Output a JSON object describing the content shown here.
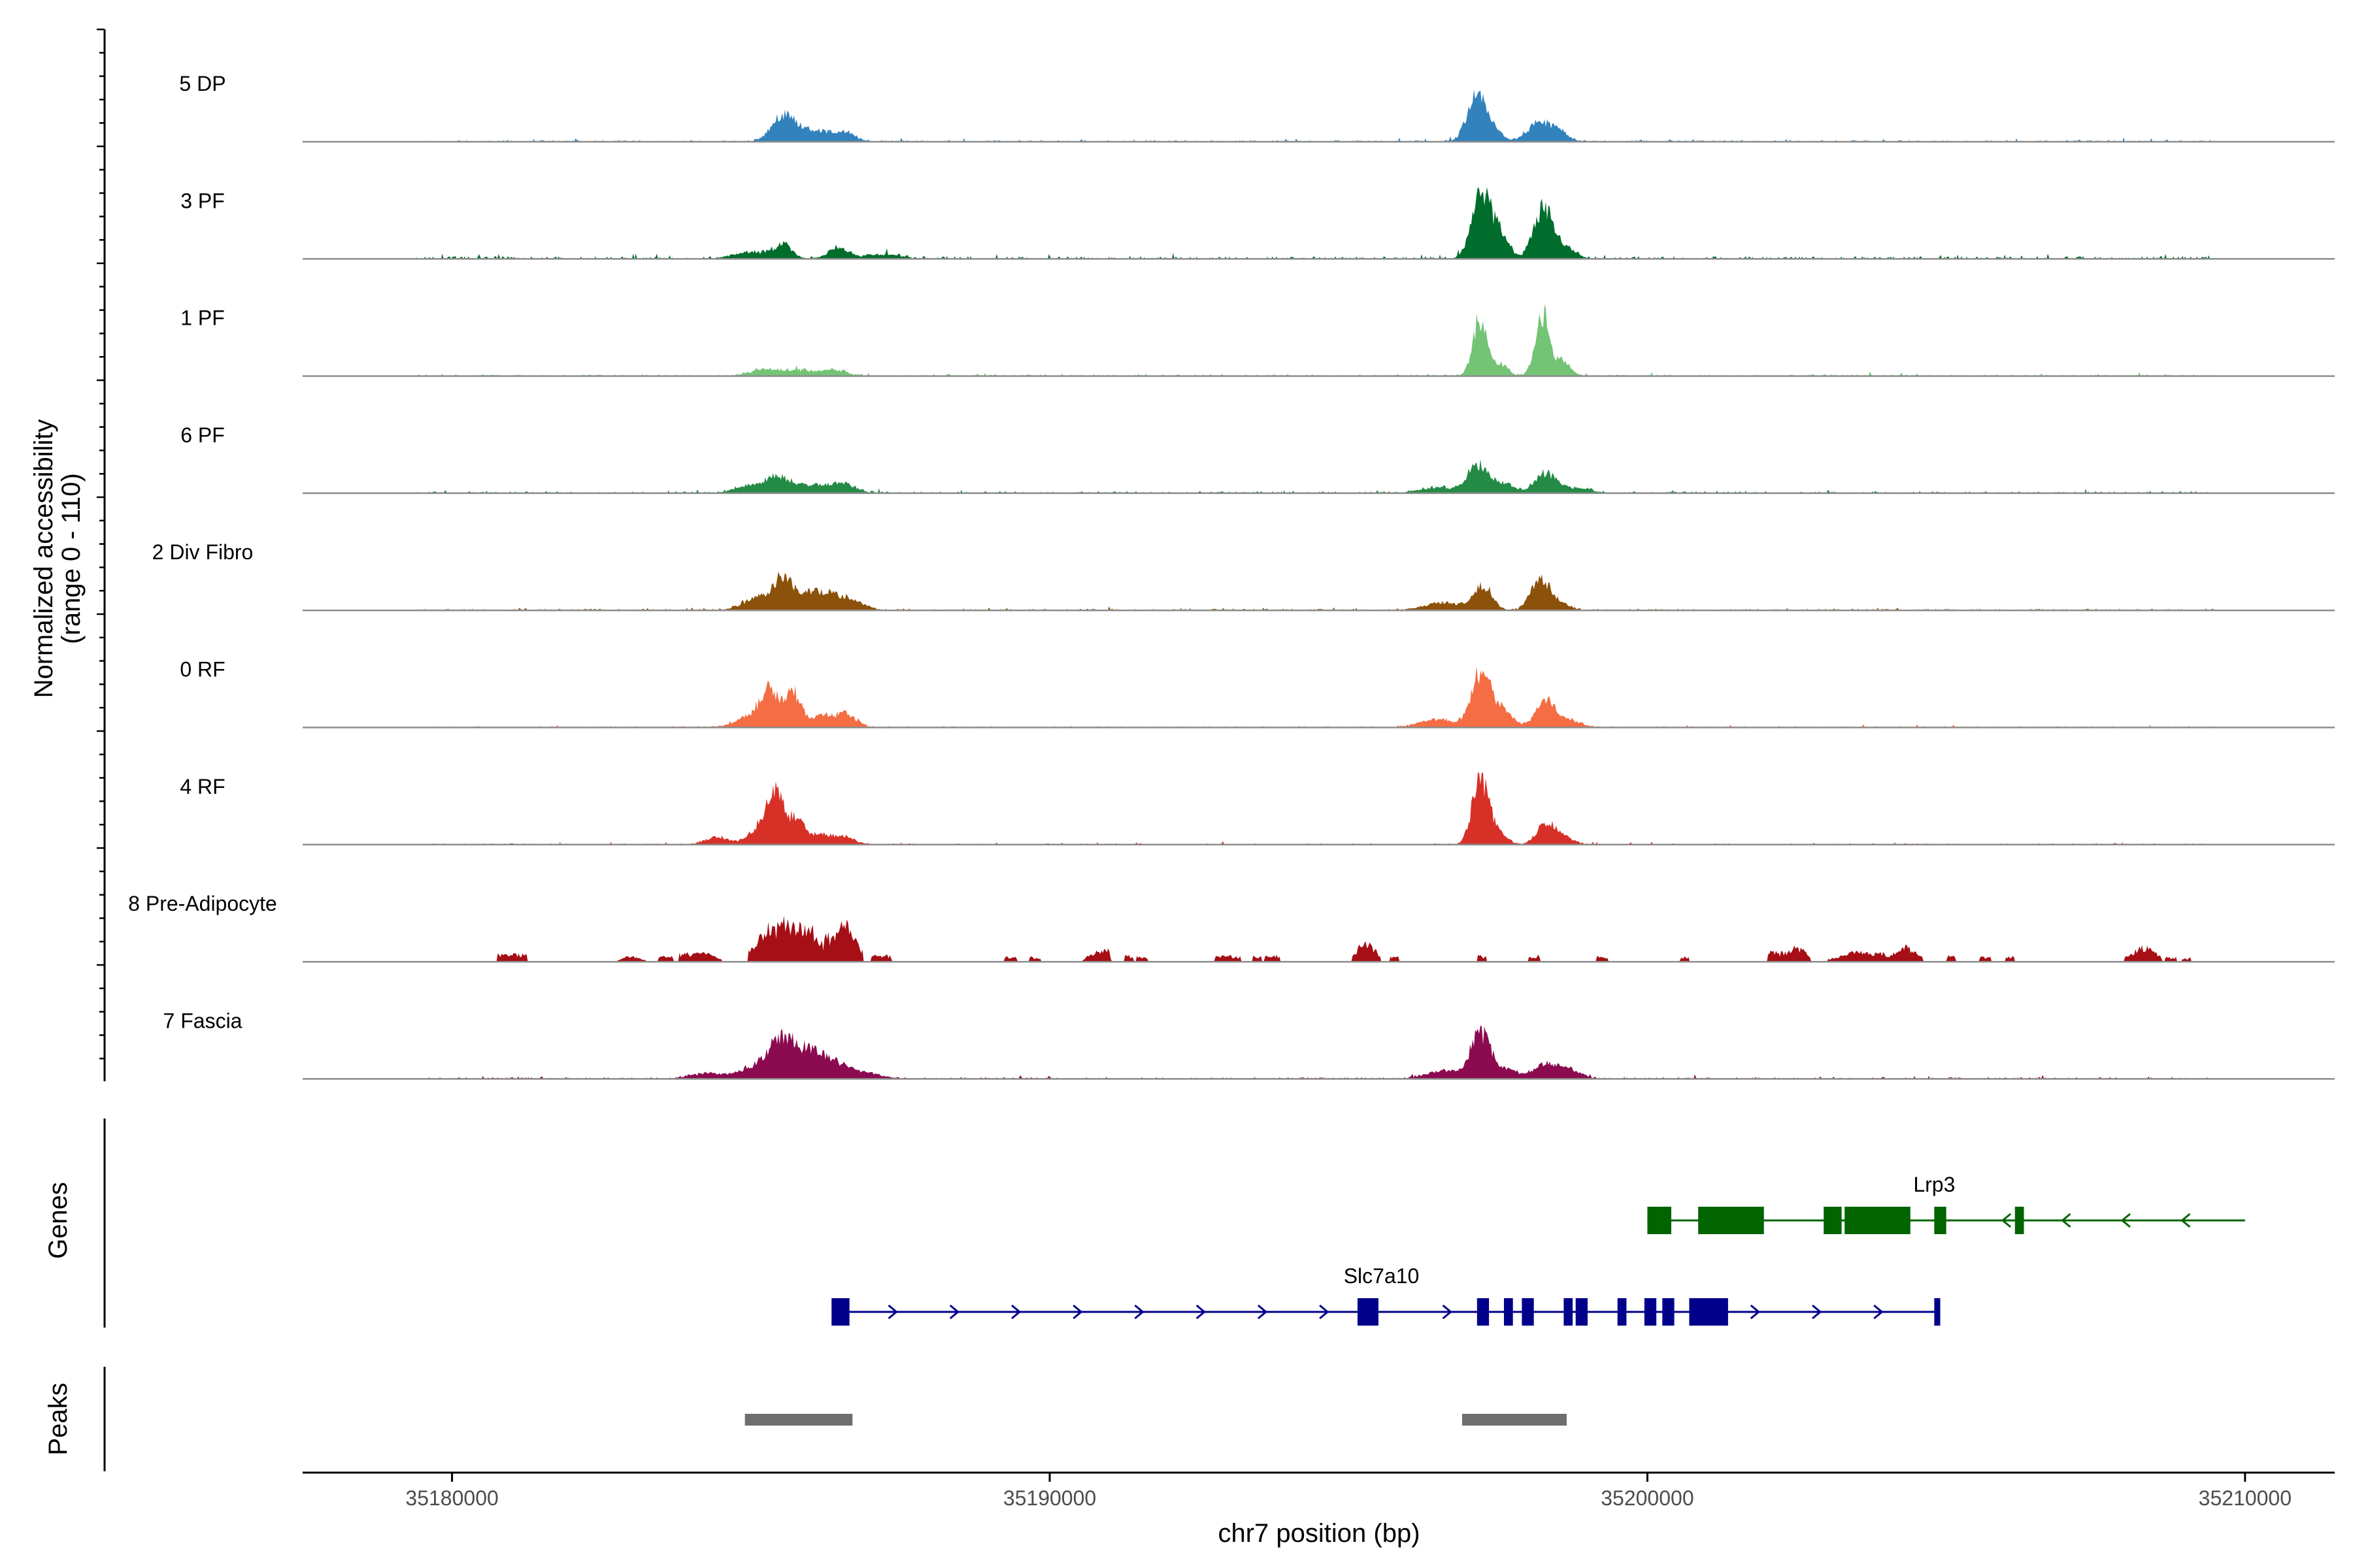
{
  "chart_data": {
    "type": "area",
    "title": "",
    "xlabel": "chr7 position (bp)",
    "ylabel_line1": "Normalized accessibility",
    "ylabel_line2": "(range 0 - 110)",
    "yrange": [
      0,
      110
    ],
    "xlim": [
      35177500,
      35211500
    ],
    "x_ticks": [
      35180000,
      35190000,
      35200000,
      35210000
    ],
    "x_tick_labels": [
      "35180000",
      "35190000",
      "35200000",
      "35210000"
    ],
    "section_labels": {
      "genes": "Genes",
      "peaks": "Peaks"
    },
    "tracks": [
      {
        "name": "5 DP",
        "color": "#3182bd",
        "range": [
          35179400,
          35209500
        ],
        "noise": 2.5,
        "noise_reach": 1.0,
        "sparse": false,
        "peaks": [
          [
            35185550,
            200,
            38
          ],
          [
            35186050,
            280,
            16
          ],
          [
            35186550,
            200,
            12
          ],
          [
            35197150,
            160,
            72
          ],
          [
            35197450,
            120,
            14
          ],
          [
            35198200,
            200,
            30
          ],
          [
            35198550,
            140,
            12
          ]
        ]
      },
      {
        "name": "3 PF",
        "color": "#006d2c",
        "range": [
          35179400,
          35209500
        ],
        "noise": 4,
        "noise_reach": 0.8,
        "sparse": false,
        "peaks": [
          [
            35185000,
            300,
            10
          ],
          [
            35185550,
            150,
            20
          ],
          [
            35186450,
            170,
            16
          ],
          [
            35187200,
            300,
            7
          ],
          [
            35197200,
            150,
            100
          ],
          [
            35197500,
            160,
            40
          ],
          [
            35198250,
            150,
            80
          ],
          [
            35198600,
            180,
            20
          ]
        ]
      },
      {
        "name": "1 PF",
        "color": "#74c476",
        "range": [
          35179400,
          35209500
        ],
        "noise": 2.5,
        "noise_reach": 1.0,
        "sparse": false,
        "peaks": [
          [
            35185200,
            250,
            9
          ],
          [
            35185800,
            300,
            8
          ],
          [
            35186400,
            200,
            8
          ],
          [
            35197200,
            120,
            88
          ],
          [
            35197550,
            120,
            18
          ],
          [
            35198250,
            120,
            98
          ],
          [
            35198600,
            120,
            22
          ]
        ]
      },
      {
        "name": "6 PF",
        "color": "#238b45",
        "range": [
          35179400,
          35209500
        ],
        "noise": 3,
        "noise_reach": 0.9,
        "sparse": false,
        "peaks": [
          [
            35185000,
            250,
            12
          ],
          [
            35185450,
            200,
            22
          ],
          [
            35186000,
            300,
            12
          ],
          [
            35186550,
            200,
            14
          ],
          [
            35196500,
            300,
            9
          ],
          [
            35197150,
            160,
            42
          ],
          [
            35197550,
            200,
            16
          ],
          [
            35198300,
            170,
            30
          ],
          [
            35198800,
            250,
            8
          ]
        ]
      },
      {
        "name": "2 Div Fibro",
        "color": "#8c510a",
        "range": [
          35179400,
          35209500
        ],
        "noise": 2.5,
        "noise_reach": 1.0,
        "sparse": false,
        "peaks": [
          [
            35185150,
            250,
            22
          ],
          [
            35185550,
            140,
            50
          ],
          [
            35185950,
            180,
            24
          ],
          [
            35186300,
            200,
            22
          ],
          [
            35186700,
            200,
            14
          ],
          [
            35196600,
            300,
            12
          ],
          [
            35197250,
            150,
            38
          ],
          [
            35198200,
            150,
            48
          ],
          [
            35198500,
            180,
            12
          ]
        ]
      },
      {
        "name": "0 RF",
        "color": "#f46d43",
        "range": [
          35179400,
          35209500
        ],
        "noise": 2,
        "noise_reach": 1.0,
        "sparse": false,
        "peaks": [
          [
            35184900,
            200,
            14
          ],
          [
            35185300,
            150,
            60
          ],
          [
            35185700,
            140,
            55
          ],
          [
            35186200,
            170,
            18
          ],
          [
            35186600,
            170,
            20
          ],
          [
            35196500,
            300,
            12
          ],
          [
            35197200,
            150,
            78
          ],
          [
            35197500,
            200,
            30
          ],
          [
            35198300,
            160,
            42
          ],
          [
            35198700,
            200,
            10
          ]
        ]
      },
      {
        "name": "4 RF",
        "color": "#d73027",
        "range": [
          35179400,
          35209500
        ],
        "noise": 2,
        "noise_reach": 1.0,
        "sparse": false,
        "peaks": [
          [
            35184450,
            200,
            12
          ],
          [
            35185100,
            150,
            22
          ],
          [
            35185400,
            140,
            78
          ],
          [
            35185750,
            140,
            38
          ],
          [
            35186150,
            170,
            16
          ],
          [
            35186550,
            170,
            12
          ],
          [
            35197200,
            130,
            100
          ],
          [
            35197450,
            160,
            20
          ],
          [
            35198300,
            150,
            32
          ],
          [
            35198600,
            160,
            12
          ]
        ]
      },
      {
        "name": "8 Pre-Adipocyte",
        "color": "#a50f15",
        "range": [
          35180700,
          35209500
        ],
        "noise": 0,
        "noise_reach": 1.0,
        "sparse": true,
        "peaks": [
          [
            35185350,
            250,
            60
          ],
          [
            35185900,
            250,
            60
          ],
          [
            35186550,
            200,
            62
          ],
          [
            35184200,
            200,
            14
          ],
          [
            35181000,
            150,
            10
          ],
          [
            35183000,
            150,
            8
          ],
          [
            35195300,
            150,
            32
          ],
          [
            35204300,
            200,
            24
          ],
          [
            35203500,
            300,
            16
          ],
          [
            35208300,
            200,
            24
          ],
          [
            35190800,
            150,
            18
          ],
          [
            35202500,
            150,
            24
          ]
        ],
        "blocks": [
          [
            35180750,
            35181250,
            12
          ],
          [
            35182850,
            35183050,
            8
          ],
          [
            35183450,
            35183700,
            10
          ],
          [
            35183800,
            35184300,
            14
          ],
          [
            35187000,
            35187350,
            10
          ],
          [
            35189250,
            35189450,
            8
          ],
          [
            35189650,
            35189850,
            8
          ],
          [
            35190750,
            35191000,
            20
          ],
          [
            35191250,
            35191400,
            10
          ],
          [
            35191450,
            35191650,
            8
          ],
          [
            35192750,
            35193200,
            10
          ],
          [
            35193400,
            35193550,
            10
          ],
          [
            35193600,
            35193850,
            10
          ],
          [
            35195150,
            35195400,
            30
          ],
          [
            35195700,
            35195850,
            8
          ],
          [
            35197150,
            35197300,
            10
          ],
          [
            35198000,
            35198200,
            10
          ],
          [
            35199150,
            35199350,
            8
          ],
          [
            35200550,
            35200700,
            8
          ],
          [
            35202000,
            35202500,
            16
          ],
          [
            35203400,
            35204000,
            14
          ],
          [
            35204400,
            35204600,
            10
          ],
          [
            35205000,
            35205150,
            10
          ],
          [
            35205550,
            35205750,
            8
          ],
          [
            35206000,
            35206150,
            8
          ],
          [
            35208200,
            35208450,
            16
          ],
          [
            35208650,
            35208850,
            8
          ],
          [
            35208950,
            35209100,
            6
          ]
        ]
      },
      {
        "name": "7 Fascia",
        "color": "#8b0a50",
        "range": [
          35179400,
          35209500
        ],
        "noise": 2.5,
        "noise_reach": 1.0,
        "sparse": false,
        "peaks": [
          [
            35185100,
            250,
            20
          ],
          [
            35185500,
            180,
            58
          ],
          [
            35185900,
            200,
            42
          ],
          [
            35186300,
            200,
            26
          ],
          [
            35186800,
            300,
            12
          ],
          [
            35184300,
            300,
            8
          ],
          [
            35196600,
            300,
            12
          ],
          [
            35197200,
            160,
            68
          ],
          [
            35197600,
            200,
            16
          ],
          [
            35198300,
            200,
            24
          ],
          [
            35198700,
            200,
            12
          ]
        ]
      }
    ],
    "genes": [
      {
        "name": "Lrp3",
        "color": "#006400",
        "strand": "-",
        "start": 35200000,
        "end": 35210000,
        "label_x": 35204800,
        "exons": [
          [
            35200000,
            35200400
          ],
          [
            35200850,
            35201950
          ],
          [
            35202950,
            35203250
          ],
          [
            35203300,
            35204400
          ],
          [
            35204800,
            35205000
          ],
          [
            35206150,
            35206300
          ]
        ]
      },
      {
        "name": "Slc7a10",
        "color": "#00008b",
        "strand": "+",
        "start": 35186350,
        "end": 35204900,
        "label_x": 35195550,
        "exons": [
          [
            35186350,
            35186650
          ],
          [
            35195150,
            35195500
          ],
          [
            35197150,
            35197350
          ],
          [
            35197600,
            35197750
          ],
          [
            35197900,
            35198100
          ],
          [
            35198600,
            35198750
          ],
          [
            35198800,
            35199000
          ],
          [
            35199500,
            35199650
          ],
          [
            35199950,
            35200150
          ],
          [
            35200250,
            35200450
          ],
          [
            35200700,
            35201350
          ],
          [
            35204800,
            35204900
          ]
        ]
      }
    ],
    "peak_regions": [
      [
        35184900,
        35186700
      ],
      [
        35196900,
        35198650
      ]
    ]
  }
}
